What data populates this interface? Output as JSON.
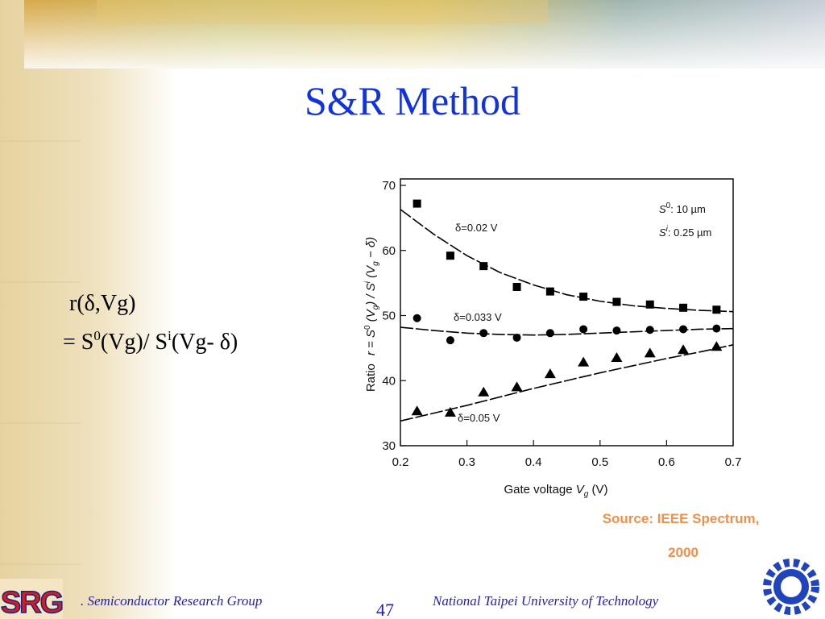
{
  "title": "S&R Method",
  "formula": {
    "line1": "r(δ,Vg)",
    "line2": [
      "= S",
      "0",
      "(Vg)/ S",
      "i",
      "(Vg- δ)"
    ]
  },
  "source": [
    "Source: IEEE Spectrum,",
    "2000"
  ],
  "footer": {
    "logo_left": "SRG",
    "group": ". Semiconductor Research Group",
    "page": "47",
    "university": "National Taipei University of Technology"
  },
  "chart_data": {
    "type": "scatter",
    "xlabel": [
      "Gate voltage ",
      "V",
      "g",
      " (V)"
    ],
    "ylabel": [
      "Ratio",
      "r = S",
      "0",
      " (V",
      "g",
      ") / S",
      "i",
      " (V",
      "g",
      " − δ)"
    ],
    "annotations": [
      [
        "S",
        "0",
        ": 10 µm"
      ],
      [
        "S",
        "i",
        ": 0.25 µm"
      ]
    ],
    "x": [
      0.225,
      0.275,
      0.325,
      0.375,
      0.425,
      0.475,
      0.525,
      0.575,
      0.625,
      0.675
    ],
    "fit_x": [
      0.2,
      0.25,
      0.3,
      0.35,
      0.4,
      0.45,
      0.5,
      0.55,
      0.6,
      0.65,
      0.7
    ],
    "series": [
      {
        "name": "δ=0.02 V",
        "color": "#000000",
        "marker": "square",
        "values": [
          67.2,
          59.2,
          57.6,
          54.4,
          53.7,
          52.9,
          52.1,
          51.7,
          51.2,
          50.9
        ],
        "fit_values": [
          66.3,
          62.5,
          59.2,
          56.6,
          54.7,
          53.2,
          52.2,
          51.5,
          51.1,
          50.8,
          50.6
        ]
      },
      {
        "name": "δ=0.033 V",
        "color": "#000000",
        "marker": "circle",
        "values": [
          49.6,
          46.2,
          47.3,
          46.6,
          47.3,
          47.9,
          47.7,
          47.8,
          47.9,
          48.0
        ],
        "fit_values": [
          48.2,
          47.7,
          47.3,
          47.1,
          47.0,
          47.1,
          47.3,
          47.5,
          47.7,
          47.9,
          48.0
        ]
      },
      {
        "name": "δ=0.05 V",
        "color": "#000000",
        "marker": "triangle",
        "values": [
          35.3,
          35.1,
          38.2,
          39.0,
          41.0,
          42.8,
          43.5,
          44.2,
          44.7,
          45.2
        ],
        "fit_values": [
          33.8,
          35.0,
          36.2,
          37.5,
          38.8,
          40.0,
          41.2,
          42.3,
          43.4,
          44.4,
          45.5
        ]
      }
    ],
    "xlim": [
      0.2,
      0.7
    ],
    "ylim": [
      30,
      70
    ],
    "xticks": [
      0.2,
      0.3,
      0.4,
      0.5,
      0.6,
      0.7
    ],
    "yticks": [
      30,
      40,
      50,
      60,
      70
    ]
  }
}
